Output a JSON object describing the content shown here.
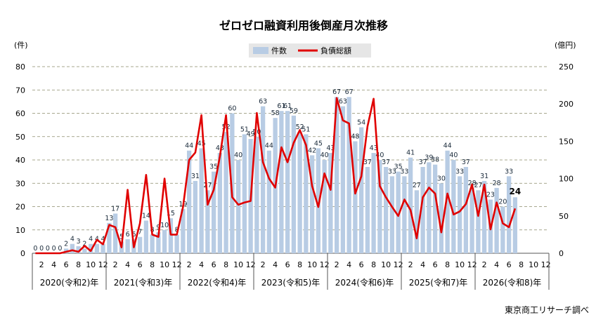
{
  "chart_data": {
    "type": "bar+line",
    "title": "ゼロゼロ融資利用後倒産月次推移",
    "left_axis_unit": "(件)",
    "right_axis_unit": "(億円)",
    "left_ylim": [
      0,
      80
    ],
    "left_ticks": [
      0,
      10,
      20,
      30,
      40,
      50,
      60,
      70,
      80
    ],
    "right_ylim": [
      0,
      250
    ],
    "right_ticks": [
      0,
      50,
      100,
      150,
      200,
      250
    ],
    "grid": true,
    "legend_position": "top-center",
    "source": "東京商工リサーチ調べ",
    "x_month_ticks": [
      "2",
      "4",
      "6",
      "8",
      "10",
      "12"
    ],
    "years": [
      "2020(令和2)年",
      "2021(令和3)年",
      "2022(令和4)年",
      "2023(令和5)年",
      "2024(令和6)年",
      "2025(令和7)年",
      "2026(令和8)年"
    ],
    "series": [
      {
        "name": "件数",
        "type": "bar",
        "axis": "left",
        "color": "#b8cce4",
        "values": [
          0,
          0,
          0,
          0,
          0,
          2,
          4,
          3,
          2,
          4,
          4,
          4,
          13,
          17,
          5,
          6,
          6,
          7,
          14,
          8,
          9,
          10,
          15,
          8,
          19,
          44,
          31,
          45,
          27,
          35,
          43,
          52,
          60,
          40,
          51,
          49,
          50,
          63,
          44,
          58,
          61,
          61,
          59,
          52,
          51,
          42,
          45,
          40,
          43,
          67,
          63,
          67,
          48,
          54,
          37,
          43,
          40,
          37,
          33,
          35,
          33,
          41,
          27,
          37,
          39,
          38,
          30,
          44,
          40,
          33,
          37,
          28,
          27,
          31,
          23,
          28,
          20,
          33,
          24
        ]
      },
      {
        "name": "負債総額",
        "type": "line",
        "axis": "right",
        "color": "#e00000",
        "values": [
          0,
          0,
          0,
          0,
          0,
          2,
          4,
          2,
          10,
          3,
          18,
          12,
          38,
          35,
          8,
          85,
          8,
          40,
          105,
          25,
          22,
          100,
          25,
          25,
          62,
          125,
          135,
          185,
          65,
          85,
          130,
          185,
          75,
          65,
          68,
          70,
          188,
          122,
          100,
          88,
          142,
          122,
          148,
          165,
          145,
          90,
          62,
          107,
          85,
          208,
          178,
          174,
          80,
          103,
          170,
          207,
          90,
          75,
          62,
          50,
          72,
          58,
          20,
          75,
          88,
          80,
          28,
          80,
          52,
          56,
          66,
          92,
          50,
          92,
          32,
          68,
          40,
          35,
          60
        ]
      }
    ],
    "last_value_label": "24"
  }
}
